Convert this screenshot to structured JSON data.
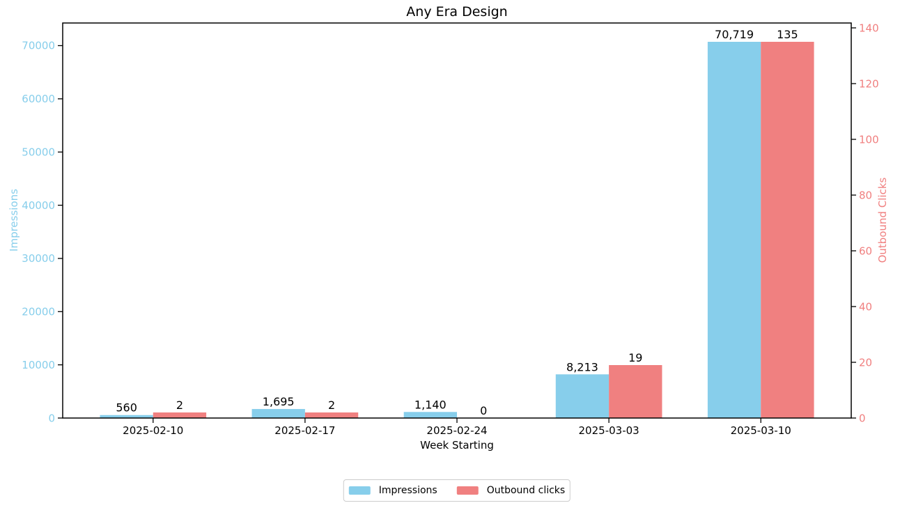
{
  "chart_data": {
    "type": "bar",
    "title": "Any Era Design",
    "xlabel": "Week Starting",
    "ylabel_left": "Impressions",
    "ylabel_right": "Outbound Clicks",
    "categories": [
      "2025-02-10",
      "2025-02-17",
      "2025-02-24",
      "2025-03-03",
      "2025-03-10"
    ],
    "series": [
      {
        "name": "Impressions",
        "axis": "left",
        "color": "#87CEEB",
        "values": [
          560,
          1695,
          1140,
          8213,
          70719
        ]
      },
      {
        "name": "Outbound clicks",
        "axis": "right",
        "color": "#F08080",
        "values": [
          2,
          2,
          0,
          19,
          135
        ]
      }
    ],
    "yticks_left": [
      0,
      10000,
      20000,
      30000,
      40000,
      50000,
      60000,
      70000
    ],
    "yticks_right": [
      0,
      20,
      40,
      60,
      80,
      100,
      120,
      140
    ],
    "ylim_left": [
      0,
      74255
    ],
    "ylim_right": [
      0,
      141.75
    ],
    "axis_color_left": "#87CEEB",
    "axis_color_right": "#F08080",
    "spine_color": "#000000",
    "value_label_color": "#000000",
    "grid": false,
    "legend_position": "bottom-center",
    "bar_value_labels": true
  }
}
